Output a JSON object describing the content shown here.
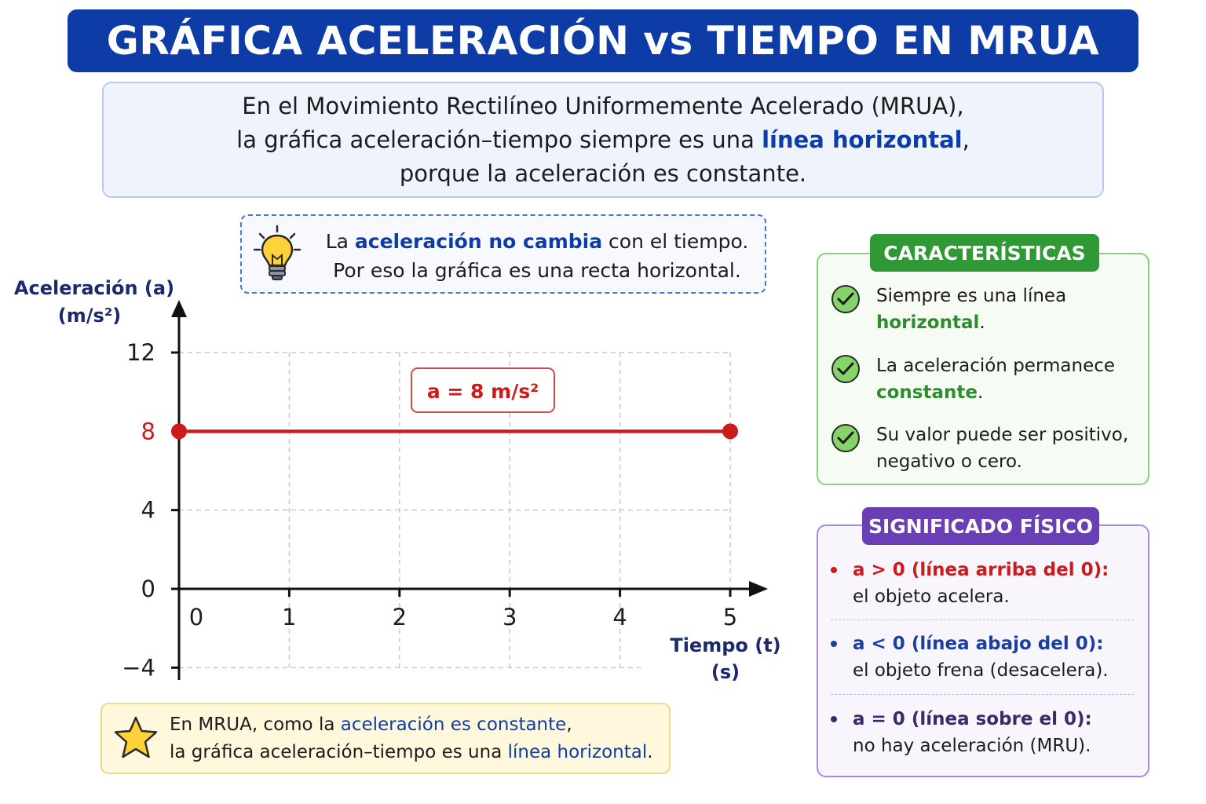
{
  "header": {
    "title": "GRÁFICA ACELERACIÓN vs TIEMPO EN MRUA"
  },
  "intro": {
    "line1": "En el Movimiento Rectilíneo Uniformemente Acelerado (MRUA),",
    "line2_pre": "la gráfica aceleración–tiempo siempre es una ",
    "line2_em": "línea horizontal",
    "line2_post": ",",
    "line3": "porque la aceleración es constante."
  },
  "tip": {
    "icon": "lightbulb-icon",
    "line1_pre": "La ",
    "line1_em": "aceleración no cambia",
    "line1_post": " con el tiempo.",
    "line2": "Por eso la gráfica es una recta horizontal."
  },
  "chart_data": {
    "type": "line",
    "ylabel": "Aceleración (a)",
    "ylabel_unit": "(m/s²)",
    "xlabel": "Tiempo (t)",
    "xlabel_unit": "(s)",
    "xlim": [
      0,
      5
    ],
    "ylim": [
      -4,
      12
    ],
    "x_ticks": [
      0,
      1,
      2,
      3,
      4,
      5
    ],
    "y_ticks": [
      12,
      8,
      4,
      0,
      -4
    ],
    "y_tick_labels": [
      "12",
      "8",
      "4",
      "0",
      "−4"
    ],
    "grid": true,
    "series": [
      {
        "values": [
          8,
          8
        ],
        "x": [
          0,
          5
        ],
        "color": "#cc1b1b"
      }
    ],
    "annotation": "a = 8 m/s²",
    "highlight_tick": 8
  },
  "note": {
    "icon": "star-icon",
    "line1_pre": "En MRUA, como la ",
    "line1_em": "aceleración es constante",
    "line1_post": ",",
    "line2_pre": "la gráfica aceleración–tiempo es una ",
    "line2_em": "línea horizontal",
    "line2_post": "."
  },
  "features": {
    "title": "CARACTERÍSTICAS",
    "items": [
      {
        "pre": "Siempre es una línea ",
        "em": "horizontal",
        "post": "."
      },
      {
        "pre": "La aceleración permanece ",
        "em": "constante",
        "post": "."
      },
      {
        "pre": "Su valor puede ser positivo, negativo o cero.",
        "em": "",
        "post": ""
      }
    ]
  },
  "meaning": {
    "title": "SIGNIFICADO FÍSICO",
    "items": [
      {
        "head": "a > 0   (línea arriba del 0):",
        "body": "el objeto acelera.",
        "color": "#cc1b1b"
      },
      {
        "head": "a < 0   (línea abajo del 0):",
        "body": "el objeto frena (desacelera).",
        "color": "#1a3fa0"
      },
      {
        "head": "a = 0   (línea sobre el 0):",
        "body": "no hay aceleración (MRU).",
        "color": "#3a2a6a"
      }
    ]
  },
  "colors": {
    "brand_blue": "#0d3ca6",
    "line_red": "#cc1b1b",
    "feature_green": "#2f9a35",
    "meaning_purple": "#6a3fb5"
  }
}
